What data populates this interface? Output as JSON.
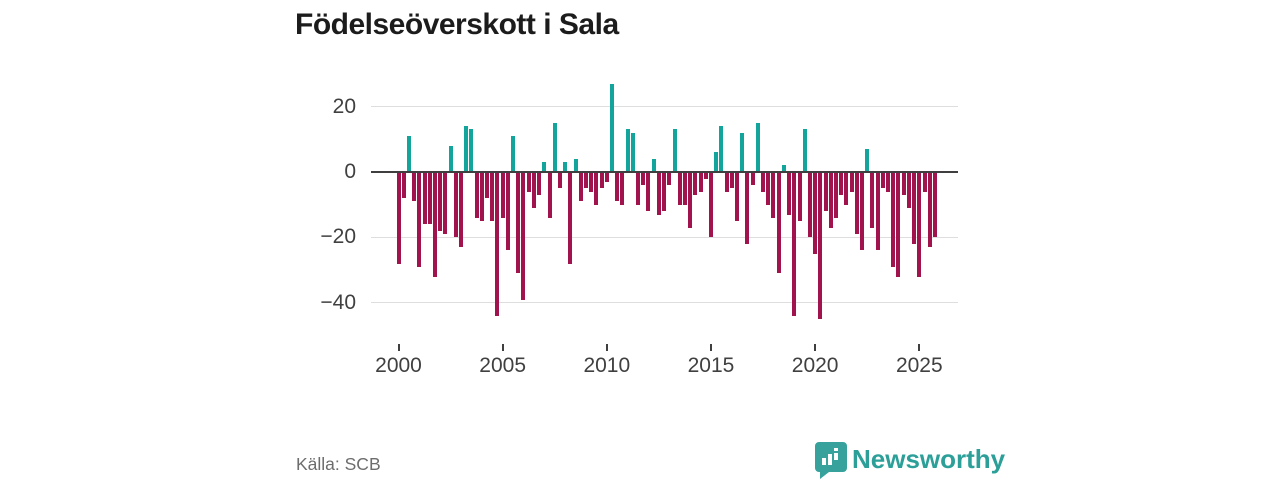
{
  "title": "Födelseöverskott i Sala",
  "source": "Källa: SCB",
  "logo": {
    "text": "Newsworthy"
  },
  "chart_data": {
    "type": "bar",
    "title": "Födelseöverskott i Sala",
    "frequency": "quarterly",
    "x_tick_labels": [
      "2000",
      "2005",
      "2010",
      "2015",
      "2020",
      "2025"
    ],
    "y_ticks": [
      20,
      0,
      -20,
      -40
    ],
    "ylim": [
      -47,
      29
    ],
    "grid": "horizontal",
    "legend": "none",
    "colors": {
      "positive": "#13a49c",
      "negative": "#a1134d"
    },
    "series": [
      {
        "name": "Födelseöverskott",
        "years": [
          {
            "year": 2000,
            "values": [
              -28,
              -8,
              11,
              -9
            ]
          },
          {
            "year": 2001,
            "values": [
              -29,
              -16,
              -16,
              -32
            ]
          },
          {
            "year": 2002,
            "values": [
              -18,
              -19,
              8,
              -20
            ]
          },
          {
            "year": 2003,
            "values": [
              -23,
              14,
              13,
              -14
            ]
          },
          {
            "year": 2004,
            "values": [
              -15,
              -8,
              -15,
              -44
            ]
          },
          {
            "year": 2005,
            "values": [
              -14,
              -24,
              11,
              -31
            ]
          },
          {
            "year": 2006,
            "values": [
              -39,
              -6,
              -11,
              -7
            ]
          },
          {
            "year": 2007,
            "values": [
              3,
              -14,
              15,
              -5
            ]
          },
          {
            "year": 2008,
            "values": [
              3,
              -28,
              4,
              -9
            ]
          },
          {
            "year": 2009,
            "values": [
              -5,
              -6,
              -10,
              -5
            ]
          },
          {
            "year": 2010,
            "values": [
              -3,
              27,
              -9,
              -10
            ]
          },
          {
            "year": 2011,
            "values": [
              13,
              12,
              -10,
              -4
            ]
          },
          {
            "year": 2012,
            "values": [
              -12,
              4,
              -13,
              -12
            ]
          },
          {
            "year": 2013,
            "values": [
              -4,
              13,
              -10,
              -10
            ]
          },
          {
            "year": 2014,
            "values": [
              -17,
              -7,
              -6,
              -2
            ]
          },
          {
            "year": 2015,
            "values": [
              -20,
              6,
              14,
              -6
            ]
          },
          {
            "year": 2016,
            "values": [
              -5,
              -15,
              12,
              -22
            ]
          },
          {
            "year": 2017,
            "values": [
              -4,
              15,
              -6,
              -10
            ]
          },
          {
            "year": 2018,
            "values": [
              -14,
              -31,
              2,
              -13
            ]
          },
          {
            "year": 2019,
            "values": [
              -44,
              -15,
              13,
              -20
            ]
          },
          {
            "year": 2020,
            "values": [
              -25,
              -45,
              -12,
              -17
            ]
          },
          {
            "year": 2021,
            "values": [
              -14,
              -7,
              -10,
              -6
            ]
          },
          {
            "year": 2022,
            "values": [
              -19,
              -24,
              7,
              -17
            ]
          },
          {
            "year": 2023,
            "values": [
              -24,
              -5,
              -6,
              -29
            ]
          },
          {
            "year": 2024,
            "values": [
              -32,
              -7,
              -11,
              -22
            ]
          },
          {
            "year": 2025,
            "values": [
              -32,
              -6,
              -23,
              -20
            ]
          }
        ]
      }
    ]
  }
}
